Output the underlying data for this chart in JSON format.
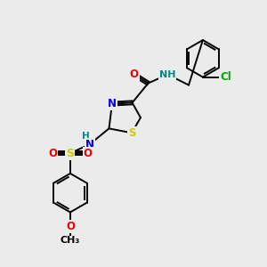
{
  "bg_color": "#ebebeb",
  "bond_color": "#000000",
  "colors": {
    "N": "#0000ee",
    "O": "#ee0000",
    "S": "#cccc00",
    "Cl": "#00aa00",
    "H": "#008888",
    "C": "#000000"
  },
  "figsize": [
    3.0,
    3.0
  ],
  "dpi": 100
}
